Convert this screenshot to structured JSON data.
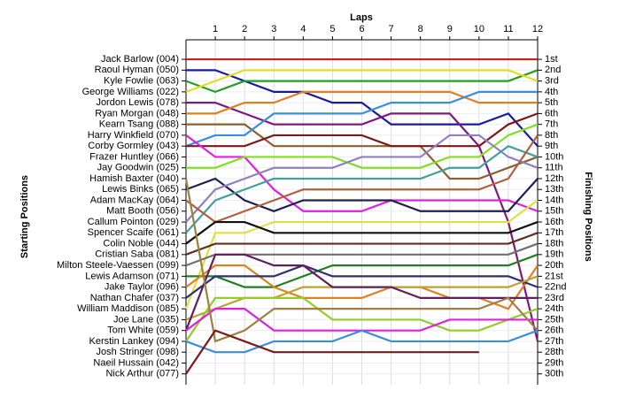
{
  "chart_data": {
    "type": "line",
    "title": "Laps",
    "y_label": "Starting Positions",
    "y2_label": "Finishing Positions",
    "x": [
      0,
      1,
      2,
      3,
      4,
      5,
      6,
      7,
      8,
      9,
      10,
      11,
      12
    ],
    "xlim": [
      0,
      12
    ],
    "xticks": [
      1,
      2,
      3,
      4,
      5,
      6,
      7,
      8,
      9,
      10,
      11,
      12
    ],
    "ylim": [
      -0.8,
      31
    ],
    "yticks": [
      1,
      2,
      3,
      4,
      5,
      6,
      7,
      8,
      9,
      10,
      11,
      12,
      13,
      14,
      15,
      16,
      17,
      18,
      19,
      20,
      21,
      22,
      23,
      24,
      25,
      26,
      27,
      28,
      29,
      30
    ],
    "y2lim": [
      -0.8,
      31
    ],
    "y2ticks": [
      {
        "value": 1,
        "label": "1st"
      },
      {
        "value": 2,
        "label": "2nd"
      },
      {
        "value": 3,
        "label": "3rd"
      },
      {
        "value": 4,
        "label": "4th"
      },
      {
        "value": 5,
        "label": "5th"
      },
      {
        "value": 6,
        "label": "6th"
      },
      {
        "value": 7,
        "label": "7th"
      },
      {
        "value": 8,
        "label": "8th"
      },
      {
        "value": 9,
        "label": "9th"
      },
      {
        "value": 10,
        "label": "10th"
      },
      {
        "value": 11,
        "label": "11th"
      },
      {
        "value": 12,
        "label": "12th"
      },
      {
        "value": 13,
        "label": "13th"
      },
      {
        "value": 14,
        "label": "14th"
      },
      {
        "value": 15,
        "label": "15th"
      },
      {
        "value": 16,
        "label": "16th"
      },
      {
        "value": 17,
        "label": "17th"
      },
      {
        "value": 18,
        "label": "18th"
      },
      {
        "value": 19,
        "label": "19th"
      },
      {
        "value": 20,
        "label": "20th"
      },
      {
        "value": 21,
        "label": "21st"
      },
      {
        "value": 22,
        "label": "22nd"
      },
      {
        "value": 23,
        "label": "23rd"
      },
      {
        "value": 24,
        "label": "24th"
      },
      {
        "value": 25,
        "label": "25th"
      },
      {
        "value": 26,
        "label": "26th"
      },
      {
        "value": 27,
        "label": "27th"
      },
      {
        "value": 28,
        "label": "28th"
      },
      {
        "value": 29,
        "label": "29th"
      },
      {
        "value": 30,
        "label": "30th"
      }
    ],
    "inverted": true,
    "grid": true,
    "series": [
      {
        "name": "Jack Barlow (004)",
        "color": "#cc2020",
        "values": [
          1,
          1,
          1,
          1,
          1,
          1,
          1,
          1,
          1,
          1,
          1,
          1,
          1
        ]
      },
      {
        "name": "Raoul Hyman (050)",
        "color": "#1a1aa0",
        "values": [
          2,
          2,
          3,
          4,
          4,
          5,
          5,
          7,
          7,
          7,
          7,
          6,
          9
        ]
      },
      {
        "name": "Kyle Fowlie (063)",
        "color": "#20a020",
        "values": [
          3,
          4,
          3,
          3,
          3,
          3,
          3,
          3,
          3,
          3,
          3,
          3,
          2
        ]
      },
      {
        "name": "George Williams (022)",
        "color": "#e0e020",
        "values": [
          4,
          3,
          2,
          2,
          2,
          2,
          2,
          2,
          2,
          2,
          2,
          2,
          3
        ]
      },
      {
        "name": "Jordon Lewis (078)",
        "color": "#801880",
        "values": [
          5,
          5,
          6,
          7,
          7,
          7,
          7,
          6,
          6,
          6,
          9,
          16,
          27
        ]
      },
      {
        "name": "Ryan Morgan (048)",
        "color": "#e08020",
        "values": [
          6,
          6,
          5,
          5,
          4,
          4,
          4,
          4,
          4,
          4,
          5,
          5,
          5
        ]
      },
      {
        "name": "Kearn Tsang (088)",
        "color": "#8b6030",
        "values": [
          7,
          7,
          7,
          9,
          9,
          9,
          9,
          9,
          9,
          12,
          12,
          11,
          10
        ]
      },
      {
        "name": "Harry Winkfield (070)",
        "color": "#3a8ee0",
        "values": [
          9,
          8,
          8,
          6,
          6,
          6,
          6,
          5,
          5,
          5,
          4,
          4,
          4
        ]
      },
      {
        "name": "Corby Gormley (043)",
        "color": "#7a1a1a",
        "values": [
          9,
          9,
          9,
          8,
          8,
          8,
          8,
          9,
          9,
          9,
          9,
          7,
          6
        ]
      },
      {
        "name": "Frazer Huntley (066)",
        "color": "#e020e0",
        "values": [
          8,
          10,
          10,
          13,
          15,
          15,
          15,
          14,
          14,
          14,
          14,
          14,
          15
        ]
      },
      {
        "name": "Jay Goodwin (025)",
        "color": "#80e020",
        "values": [
          11,
          11,
          10,
          10,
          10,
          10,
          11,
          11,
          11,
          10,
          10,
          8,
          7
        ]
      },
      {
        "name": "Hamish Baxter (040)",
        "color": "#202050",
        "values": [
          13,
          12,
          14,
          15,
          14,
          14,
          14,
          14,
          15,
          15,
          15,
          15,
          12
        ]
      },
      {
        "name": "Lewis Binks (065)",
        "color": "#9080c0",
        "values": [
          16,
          13,
          12,
          11,
          11,
          11,
          10,
          10,
          10,
          8,
          8,
          10,
          11
        ]
      },
      {
        "name": "Adam MacKay (064)",
        "color": "#40a0a0",
        "values": [
          17,
          14,
          13,
          12,
          12,
          12,
          12,
          12,
          12,
          11,
          11,
          9,
          10
        ]
      },
      {
        "name": "Matt Booth (056)",
        "color": "#b06040",
        "values": [
          14,
          16,
          15,
          14,
          13,
          13,
          13,
          13,
          13,
          13,
          13,
          12,
          8
        ]
      },
      {
        "name": "Callum Pointon (029)",
        "color": "#e0e040",
        "values": [
          24,
          17,
          17,
          16,
          16,
          16,
          16,
          16,
          16,
          16,
          16,
          16,
          14
        ]
      },
      {
        "name": "Spencer Scaife (061)",
        "color": "#101010",
        "values": [
          18,
          16,
          16,
          17,
          17,
          17,
          17,
          17,
          17,
          17,
          17,
          17,
          16
        ]
      },
      {
        "name": "Colin Noble (044)",
        "color": "#603020",
        "values": [
          19,
          18,
          18,
          18,
          18,
          18,
          18,
          18,
          18,
          18,
          18,
          18,
          17
        ]
      },
      {
        "name": "Cristian Saba (081)",
        "color": "#707070",
        "values": [
          20,
          19,
          19,
          19,
          19,
          19,
          19,
          19,
          19,
          19,
          19,
          19,
          18
        ]
      },
      {
        "name": "Milton Steele-Vaessen (099)",
        "color": "#208020",
        "values": [
          21,
          21,
          22,
          22,
          21,
          20,
          20,
          20,
          20,
          20,
          20,
          20,
          19
        ]
      },
      {
        "name": "Lewis Adamson (071)",
        "color": "#e08020",
        "values": [
          22,
          20,
          20,
          22,
          23,
          23,
          23,
          22,
          22,
          23,
          23,
          24,
          20
        ]
      },
      {
        "name": "Jake Taylor (096)",
        "color": "#303070",
        "values": [
          23,
          21,
          21,
          21,
          20,
          21,
          21,
          21,
          21,
          21,
          21,
          21,
          22
        ]
      },
      {
        "name": "Nathan Chafer (037)",
        "color": "#c0a030",
        "values": [
          25,
          24,
          23,
          23,
          22,
          22,
          22,
          22,
          22,
          22,
          22,
          22,
          21
        ]
      },
      {
        "name": "William Maddison (085)",
        "color": "#602060",
        "values": [
          26,
          19,
          19,
          20,
          20,
          22,
          22,
          22,
          23,
          23,
          23,
          23,
          23
        ]
      },
      {
        "name": "Joe Lane (035)",
        "color": "#90d020",
        "values": [
          27,
          23,
          23,
          23,
          23,
          25,
          25,
          25,
          25,
          26,
          26,
          25,
          24
        ]
      },
      {
        "name": "Tom White (059)",
        "color": "#e020e0",
        "values": [
          26,
          24,
          24,
          26,
          26,
          26,
          26,
          26,
          26,
          25,
          25,
          25,
          25
        ]
      },
      {
        "name": "Kerstin Lankey (094)",
        "color": "#a08040",
        "values": [
          12,
          27,
          26,
          24,
          24,
          24,
          24,
          24,
          24,
          24,
          24,
          23,
          26
        ]
      },
      {
        "name": "Josh Stringer (098)",
        "color": "#3a8ee0",
        "values": [
          27,
          28,
          28,
          27,
          27,
          27,
          26,
          27,
          27,
          27,
          27,
          27,
          26
        ]
      },
      {
        "name": "Naeil Hussain (042)",
        "color": "#7a1a1a",
        "values": [
          30,
          26,
          27,
          28,
          28,
          28,
          28,
          28,
          28,
          28,
          28,
          null,
          null
        ]
      },
      {
        "name": "Nick Arthur (077)",
        "color": "#404040",
        "values": [
          30,
          null,
          null,
          null,
          null,
          null,
          null,
          null,
          null,
          null,
          null,
          null,
          null
        ]
      }
    ]
  }
}
